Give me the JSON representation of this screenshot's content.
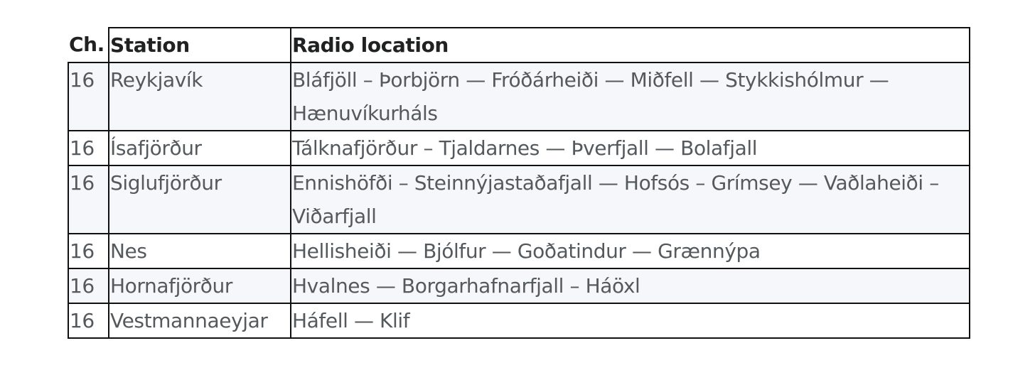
{
  "table": {
    "headers": {
      "channel": "Ch.",
      "station": "Station",
      "location": "Radio location"
    },
    "rows": [
      {
        "channel": "16",
        "station": "Reykjavík",
        "location": "Bláfjöll – Þorbjörn — Fróðárheiði — Miðfell — Stykkishólmur — Hænuvíkurháls"
      },
      {
        "channel": "16",
        "station": "Ísafjörður",
        "location": "Tálknafjörður – Tjaldarnes — Þverfjall — Bolafjall"
      },
      {
        "channel": "16",
        "station": "Siglufjörður",
        "location": "Ennishöfði – Steinnýjastaðafjall — Hofsós – Grímsey — Vaðlaheiði – Viðarfjall"
      },
      {
        "channel": "16",
        "station": "Nes",
        "location": "Hellisheiði — Bjólfur — Goðatindur — Grænnýpa"
      },
      {
        "channel": "16",
        "station": "Hornafjörður",
        "location": "Hvalnes — Borgarhafnarfjall – Háöxl"
      },
      {
        "channel": "16",
        "station": "Vestmannaeyjar",
        "location": "Háfell — Klif"
      }
    ]
  }
}
